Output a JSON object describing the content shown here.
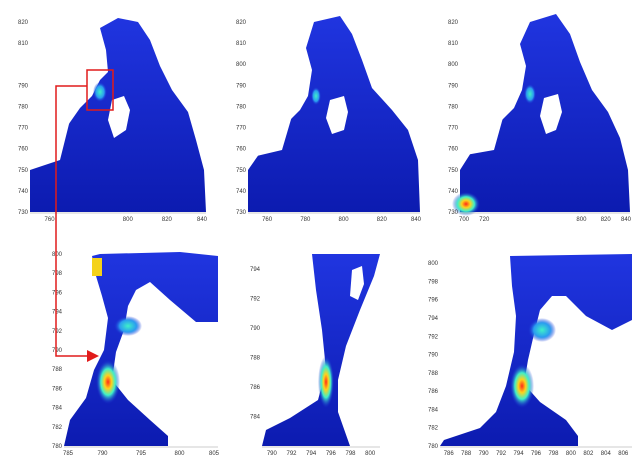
{
  "colors": {
    "field_base": "#1a2fd6",
    "field_deep": "#0b1aa8",
    "hot": "#ffd21a",
    "warm": "#21e0d8",
    "arrow": "#e11b1b",
    "axis": "#333333"
  },
  "chart_data": [
    {
      "type": "heatmap",
      "panel": "top-left",
      "xlim": [
        750,
        840
      ],
      "ylim": [
        730,
        820
      ],
      "xticks": [
        {
          "v": 760,
          "label": "760"
        },
        {
          "v": 800,
          "label": "800"
        },
        {
          "v": 820,
          "label": "820"
        },
        {
          "v": 840,
          "label": "840"
        }
      ],
      "yticks": [
        {
          "v": 820,
          "label": "820"
        },
        {
          "v": 810,
          "label": "810"
        },
        {
          "v": 790,
          "label": "790"
        },
        {
          "v": 780,
          "label": "780"
        },
        {
          "v": 770,
          "label": "770"
        },
        {
          "v": 760,
          "label": "760"
        },
        {
          "v": 750,
          "label": "750"
        },
        {
          "v": 740,
          "label": "740"
        },
        {
          "v": 730,
          "label": "730"
        }
      ],
      "highlight_box": {
        "x": [
          786,
          800
        ],
        "y": [
          783,
          795
        ]
      }
    },
    {
      "type": "heatmap",
      "panel": "top-middle",
      "xlim": [
        750,
        840
      ],
      "ylim": [
        730,
        820
      ],
      "xticks": [
        {
          "v": 760,
          "label": "760"
        },
        {
          "v": 780,
          "label": "780"
        },
        {
          "v": 800,
          "label": "800"
        },
        {
          "v": 820,
          "label": "820"
        },
        {
          "v": 840,
          "label": "840"
        }
      ],
      "yticks": [
        {
          "v": 820,
          "label": "820"
        },
        {
          "v": 810,
          "label": "810"
        },
        {
          "v": 800,
          "label": "800"
        },
        {
          "v": 790,
          "label": "790"
        },
        {
          "v": 780,
          "label": "780"
        },
        {
          "v": 770,
          "label": "770"
        },
        {
          "v": 760,
          "label": "760"
        },
        {
          "v": 750,
          "label": "750"
        },
        {
          "v": 740,
          "label": "740"
        },
        {
          "v": 730,
          "label": "730"
        }
      ]
    },
    {
      "type": "heatmap",
      "panel": "top-right",
      "xlim": [
        700,
        840
      ],
      "ylim": [
        730,
        820
      ],
      "xticks": [
        {
          "v": 700,
          "label": "700"
        },
        {
          "v": 720,
          "label": "720"
        },
        {
          "v": 800,
          "label": "800"
        },
        {
          "v": 820,
          "label": "820"
        },
        {
          "v": 840,
          "label": "840"
        }
      ],
      "yticks": [
        {
          "v": 820,
          "label": "820"
        },
        {
          "v": 810,
          "label": "810"
        },
        {
          "v": 800,
          "label": "800"
        },
        {
          "v": 790,
          "label": "790"
        },
        {
          "v": 780,
          "label": "780"
        },
        {
          "v": 770,
          "label": "770"
        },
        {
          "v": 760,
          "label": "760"
        },
        {
          "v": 750,
          "label": "750"
        },
        {
          "v": 740,
          "label": "740"
        },
        {
          "v": 730,
          "label": "730"
        }
      ]
    },
    {
      "type": "heatmap",
      "panel": "bottom-left",
      "xlim": [
        785,
        805
      ],
      "ylim": [
        780,
        800
      ],
      "xticks": [
        {
          "v": 785,
          "label": "785"
        },
        {
          "v": 790,
          "label": "790"
        },
        {
          "v": 795,
          "label": "795"
        },
        {
          "v": 800,
          "label": "800"
        },
        {
          "v": 805,
          "label": "805"
        }
      ],
      "yticks": [
        {
          "v": 800,
          "label": "800"
        },
        {
          "v": 798,
          "label": "798"
        },
        {
          "v": 796,
          "label": "796"
        },
        {
          "v": 794,
          "label": "794"
        },
        {
          "v": 792,
          "label": "792"
        },
        {
          "v": 790,
          "label": "790"
        },
        {
          "v": 788,
          "label": "788"
        },
        {
          "v": 786,
          "label": "786"
        },
        {
          "v": 784,
          "label": "784"
        },
        {
          "v": 782,
          "label": "782"
        },
        {
          "v": 780,
          "label": "780"
        }
      ]
    },
    {
      "type": "heatmap",
      "panel": "bottom-middle",
      "xlim": [
        789,
        801
      ],
      "ylim": [
        782,
        795
      ],
      "xticks": [
        {
          "v": 790,
          "label": "790"
        },
        {
          "v": 792,
          "label": "792"
        },
        {
          "v": 794,
          "label": "794"
        },
        {
          "v": 796,
          "label": "796"
        },
        {
          "v": 798,
          "label": "798"
        },
        {
          "v": 800,
          "label": "800"
        }
      ],
      "yticks": [
        {
          "v": 794,
          "label": "794"
        },
        {
          "v": 792,
          "label": "792"
        },
        {
          "v": 790,
          "label": "790"
        },
        {
          "v": 788,
          "label": "788"
        },
        {
          "v": 786,
          "label": "786"
        },
        {
          "v": 784,
          "label": "784"
        }
      ]
    },
    {
      "type": "heatmap",
      "panel": "bottom-right",
      "xlim": [
        785,
        807
      ],
      "ylim": [
        780,
        801
      ],
      "xticks": [
        {
          "v": 786,
          "label": "786"
        },
        {
          "v": 788,
          "label": "788"
        },
        {
          "v": 790,
          "label": "790"
        },
        {
          "v": 792,
          "label": "792"
        },
        {
          "v": 794,
          "label": "794"
        },
        {
          "v": 796,
          "label": "796"
        },
        {
          "v": 798,
          "label": "798"
        },
        {
          "v": 800,
          "label": "800"
        },
        {
          "v": 802,
          "label": "802"
        },
        {
          "v": 804,
          "label": "804"
        },
        {
          "v": 806,
          "label": "806"
        }
      ],
      "yticks": [
        {
          "v": 800,
          "label": "800"
        },
        {
          "v": 798,
          "label": "798"
        },
        {
          "v": 796,
          "label": "796"
        },
        {
          "v": 794,
          "label": "794"
        },
        {
          "v": 792,
          "label": "792"
        },
        {
          "v": 790,
          "label": "790"
        },
        {
          "v": 788,
          "label": "788"
        },
        {
          "v": 786,
          "label": "786"
        },
        {
          "v": 784,
          "label": "784"
        },
        {
          "v": 782,
          "label": "782"
        },
        {
          "v": 780,
          "label": "780"
        }
      ]
    }
  ]
}
